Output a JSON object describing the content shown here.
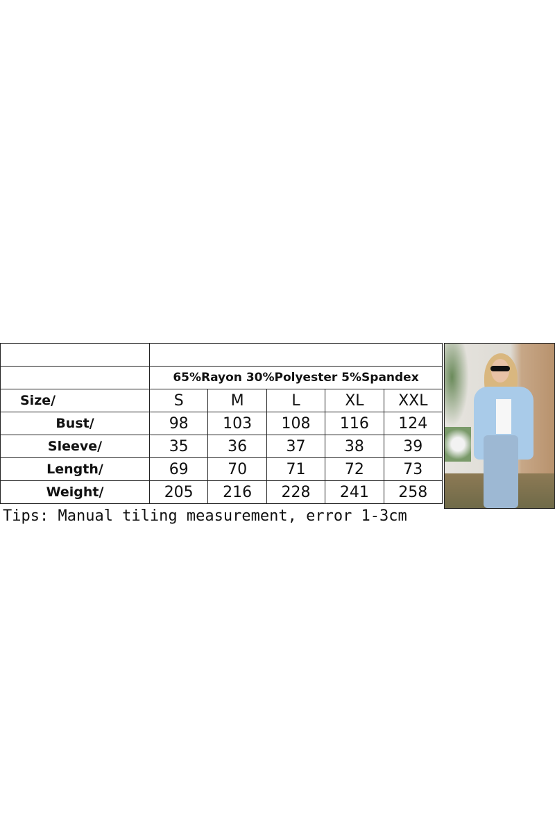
{
  "fabric": "65%Rayon 30%Polyester 5%Spandex",
  "sizes": [
    "S",
    "M",
    "L",
    "XL",
    "XXL"
  ],
  "size_label": "Size/",
  "rows": [
    {
      "label": "Bust/",
      "values": [
        "98",
        "103",
        "108",
        "116",
        "124"
      ]
    },
    {
      "label": "Sleeve/",
      "values": [
        "35",
        "36",
        "37",
        "38",
        "39"
      ]
    },
    {
      "label": "Length/",
      "values": [
        "69",
        "70",
        "71",
        "72",
        "73"
      ]
    },
    {
      "label": "Weight/",
      "values": [
        "205",
        "216",
        "228",
        "241",
        "258"
      ]
    }
  ],
  "tips": "Tips: Manual tiling measurement, error 1-3cm"
}
